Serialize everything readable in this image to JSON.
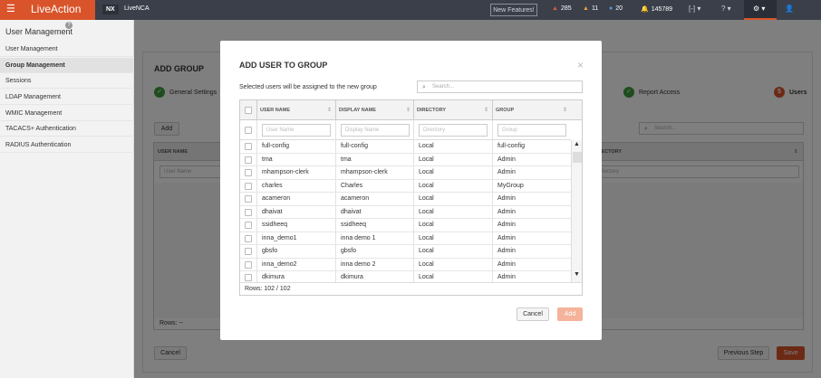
{
  "topbar": {
    "logo": "LiveAction",
    "nx_tab": "NX",
    "livenca_tab": "LiveNCA",
    "new_features": "New Features!",
    "alerts": [
      {
        "icon": "triangle-up-icon",
        "color": "#e05a3a",
        "value": "285"
      },
      {
        "icon": "triangle-up-icon",
        "color": "#e6a23c",
        "value": "11"
      },
      {
        "icon": "circle-icon",
        "color": "#5a9bd5",
        "value": "20"
      },
      {
        "icon": "bell-icon",
        "color": "#5a9bd5",
        "value": "145789"
      }
    ]
  },
  "sidebar": {
    "title": "User Management",
    "help": "?",
    "items": [
      {
        "label": "User Management"
      },
      {
        "label": "Group Management"
      },
      {
        "label": "Sessions"
      },
      {
        "label": "LDAP Management"
      },
      {
        "label": "WMIC Management"
      },
      {
        "label": "TACACS+ Authentication"
      },
      {
        "label": "RADIUS Authentication"
      }
    ]
  },
  "page": {
    "title": "ADD GROUP",
    "steps": {
      "general": "General Settings",
      "report": "Report Access",
      "users": "Users",
      "users_num": "5"
    },
    "add_button": "Add",
    "search_placeholder": "Search...",
    "table": {
      "col_username": "USER NAME",
      "col_directory": "DIRECTORY",
      "filter_username": "User Name",
      "filter_directory": "Directory",
      "rows_label": "Rows: --"
    },
    "cancel_button": "Cancel",
    "previous_button": "Previous Step",
    "save_button": "Save"
  },
  "modal": {
    "title": "ADD USER TO GROUP",
    "close": "×",
    "subtitle": "Selected users will be assigned to the new group",
    "search_placeholder": "Search...",
    "columns": {
      "username": "USER NAME",
      "display": "DISPLAY NAME",
      "directory": "DIRECTORY",
      "group": "GROUP"
    },
    "filters": {
      "username": "User Name",
      "display": "Display Name",
      "directory": "Directory",
      "group": "Group"
    },
    "rows": [
      {
        "user": "full-config",
        "display": "full-config",
        "directory": "Local",
        "group": "full-config"
      },
      {
        "user": "tma",
        "display": "tma",
        "directory": "Local",
        "group": "Admin"
      },
      {
        "user": "mhampson-clerk",
        "display": "mhampson-clerk",
        "directory": "Local",
        "group": "Admin"
      },
      {
        "user": "charles",
        "display": "Charles",
        "directory": "Local",
        "group": "MyGroup"
      },
      {
        "user": "acameron",
        "display": "acameron",
        "directory": "Local",
        "group": "Admin"
      },
      {
        "user": "dhaivat",
        "display": "dhaivat",
        "directory": "Local",
        "group": "Admin"
      },
      {
        "user": "ssidheeq",
        "display": "ssidheeq",
        "directory": "Local",
        "group": "Admin"
      },
      {
        "user": "inna_demo1",
        "display": "inna demo 1",
        "directory": "Local",
        "group": "Admin"
      },
      {
        "user": "gbsfo",
        "display": "gbsfo",
        "directory": "Local",
        "group": "Admin"
      },
      {
        "user": "inna_demo2",
        "display": "inna demo 2",
        "directory": "Local",
        "group": "Admin"
      },
      {
        "user": "dkimura",
        "display": "dkimura",
        "directory": "Local",
        "group": "Admin"
      }
    ],
    "rows_count": "Rows: 102 / 102",
    "cancel_button": "Cancel",
    "add_button": "Add"
  }
}
